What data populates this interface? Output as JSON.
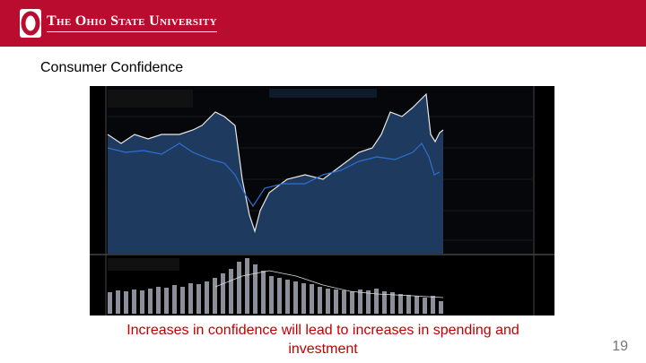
{
  "header": {
    "title": "The Ohio State University"
  },
  "slide": {
    "heading": "Consumer Confidence",
    "caption": "Increases in confidence will lead to increases in spending and investment",
    "page_number": "19"
  }
}
